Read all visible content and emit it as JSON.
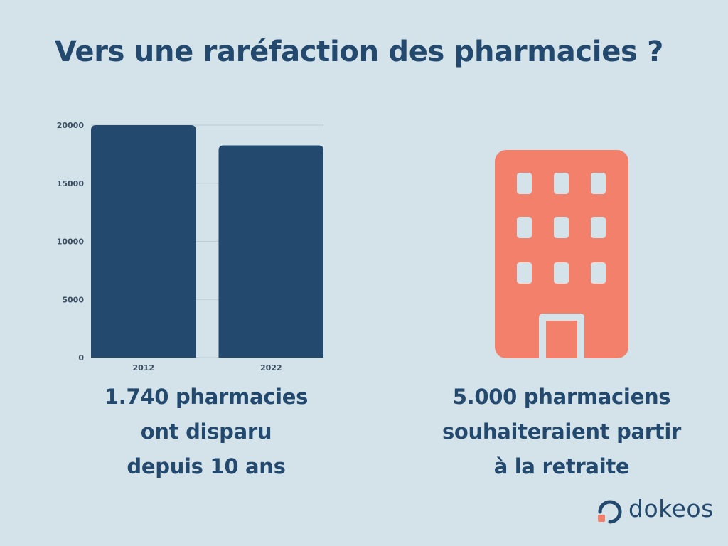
{
  "title": "Vers une raréfaction des pharmacies ?",
  "chart_data": {
    "type": "bar",
    "categories": [
      "2012",
      "2022"
    ],
    "values": [
      20000,
      18260
    ],
    "ylim": [
      0,
      20000
    ],
    "yticks": [
      0,
      5000,
      10000,
      15000,
      20000
    ],
    "ytick_labels": [
      "0",
      "5000",
      "10000",
      "15000",
      "20000"
    ],
    "grid": true,
    "bar_color": "#234a6e"
  },
  "captions": {
    "left": [
      "1.740 pharmacies",
      "ont disparu",
      "depuis 10 ans"
    ],
    "right": [
      "5.000 pharmaciens",
      "souhaiteraient partir",
      "à la retraite"
    ]
  },
  "icons": {
    "building": "building-icon",
    "logo_mark": "dokeos-logo-icon"
  },
  "colors": {
    "background": "#d4e3e9",
    "accent": "#f2806a",
    "text": "#234a6e"
  },
  "logo": {
    "text": "dokeos"
  }
}
